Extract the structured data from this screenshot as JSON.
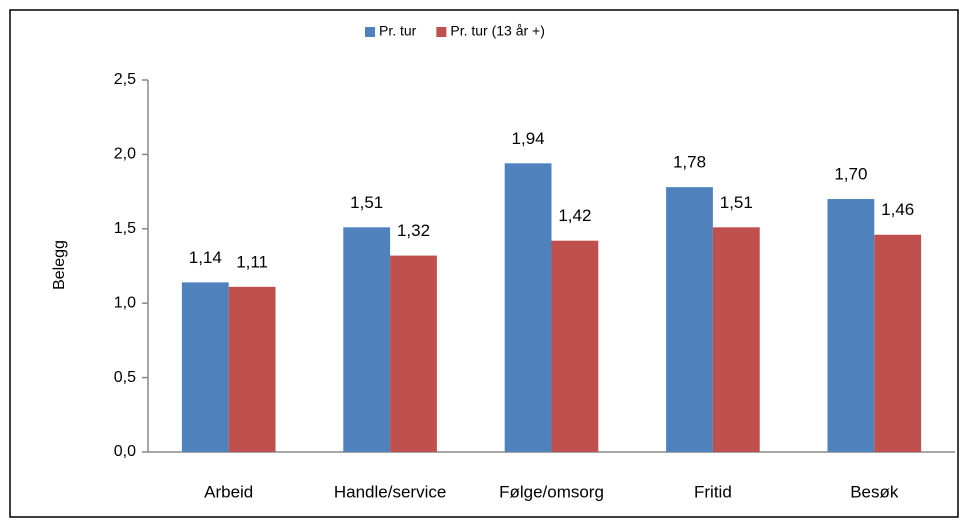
{
  "chart_data": {
    "type": "bar",
    "y_label": "Belegg",
    "categories": [
      "Arbeid",
      "Handle/service",
      "Følge/omsorg",
      "Fritid",
      "Besøk"
    ],
    "series": [
      {
        "name": "Pr. tur",
        "color": "#4f81bd",
        "values": [
          1.14,
          1.51,
          1.94,
          1.78,
          1.7
        ],
        "value_labels": [
          "1,14",
          "1,51",
          "1,94",
          "1,78",
          "1,70"
        ]
      },
      {
        "name": "Pr. tur (13 år +)",
        "color": "#c0504d",
        "values": [
          1.11,
          1.32,
          1.42,
          1.51,
          1.46
        ],
        "value_labels": [
          "1,11",
          "1,32",
          "1,42",
          "1,51",
          "1,46"
        ]
      }
    ],
    "ylim": [
      0,
      2.5
    ],
    "yticks": [
      {
        "value": 0,
        "label": "0,0"
      },
      {
        "value": 0.5,
        "label": "0,5"
      },
      {
        "value": 1.0,
        "label": "1,0"
      },
      {
        "value": 1.5,
        "label": "1,5"
      },
      {
        "value": 2.0,
        "label": "2,0"
      },
      {
        "value": 2.5,
        "label": "2,5"
      }
    ],
    "legend": "top",
    "grid": false
  }
}
